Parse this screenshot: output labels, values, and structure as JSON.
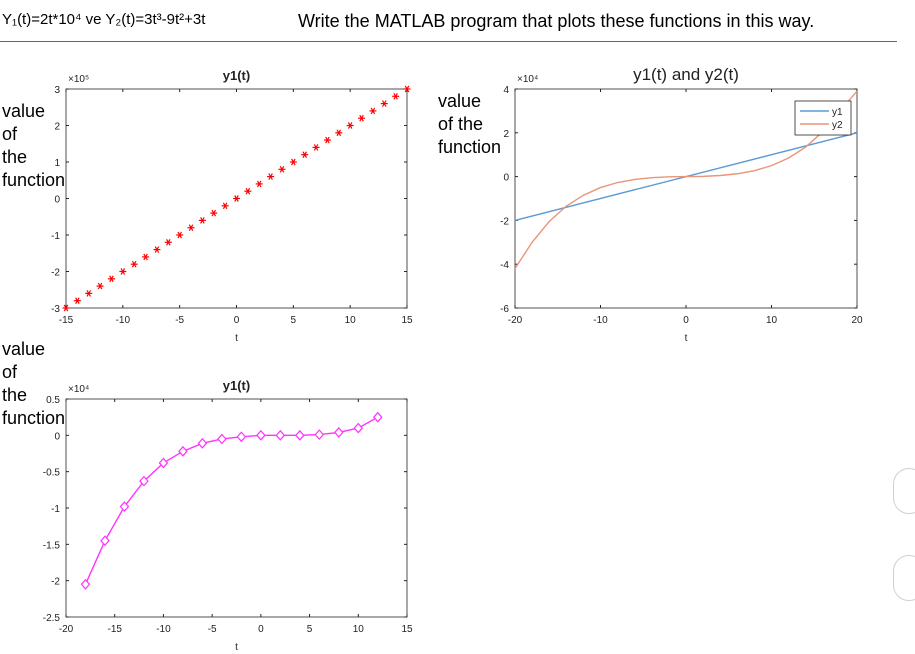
{
  "header": {
    "formula": "Y₁(t)=2t*10⁴  ve  Y₂(t)=3t³-9t²+3t",
    "task": "Write the MATLAB program that plots these functions in this way."
  },
  "overlay_labels": {
    "left_top": "value\nof\nthe\nfunction",
    "left_bottom": "value\nof\nthe\nfunction",
    "right_top": "value\nof the\nfunction"
  },
  "chart_data": [
    {
      "type": "scatter",
      "title": "y1(t)",
      "xlabel": "t",
      "ylabel": "",
      "exponent_label": "×10⁵",
      "xlim": [
        -15,
        15
      ],
      "ylim": [
        -3,
        3
      ],
      "xticks": [
        "-15",
        "-10",
        "-5",
        "0",
        "5",
        "10",
        "15"
      ],
      "yticks": [
        "-3",
        "-2",
        "-1",
        "0",
        "1",
        "2",
        "3"
      ],
      "color": "#ff0000",
      "marker": "asterisk",
      "series": [
        {
          "x": [
            -15,
            -14,
            -13,
            -12,
            -11,
            -10,
            -9,
            -8,
            -7,
            -6,
            -5,
            -4,
            -3,
            -2,
            -1,
            0,
            1,
            2,
            3,
            4,
            5,
            6,
            7,
            8,
            9,
            10,
            11,
            12,
            13,
            14,
            15
          ],
          "values": [
            -3,
            -2.8,
            -2.6,
            -2.4,
            -2.2,
            -2,
            -1.8,
            -1.6,
            -1.4,
            -1.2,
            -1,
            -0.8,
            -0.6,
            -0.4,
            -0.2,
            0,
            0.2,
            0.4,
            0.6,
            0.8,
            1,
            1.2,
            1.4,
            1.6,
            1.8,
            2,
            2.2,
            2.4,
            2.6,
            2.8,
            3
          ]
        }
      ]
    },
    {
      "type": "line",
      "title": "y1(t) and y2(t)",
      "xlabel": "t",
      "ylabel": "",
      "exponent_label": "×10⁴",
      "xlim": [
        -20,
        20
      ],
      "ylim": [
        -6,
        4
      ],
      "xticks": [
        "-20",
        "-10",
        "0",
        "10",
        "20"
      ],
      "yticks": [
        "-6",
        "-4",
        "-2",
        "0",
        "2",
        "4"
      ],
      "legend": {
        "position": "top-right",
        "entries": [
          "y1",
          "y2"
        ]
      },
      "series": [
        {
          "name": "y1",
          "color": "#5b9bd5",
          "x": [
            -20,
            20
          ],
          "values": [
            -2,
            2
          ]
        },
        {
          "name": "y2",
          "color": "#e8957a",
          "x": [
            -20,
            -18,
            -16,
            -14,
            -12,
            -10,
            -8,
            -6,
            -4,
            -2,
            0,
            2,
            4,
            6,
            8,
            10,
            12,
            14,
            16,
            18,
            20
          ],
          "values": [
            -4.2,
            -3.0,
            -2.05,
            -1.35,
            -0.85,
            -0.5,
            -0.27,
            -0.13,
            -0.05,
            -0.01,
            0,
            0.01,
            0.05,
            0.13,
            0.27,
            0.5,
            0.85,
            1.35,
            2.05,
            3.0,
            3.9
          ]
        }
      ]
    },
    {
      "type": "line",
      "title": "y1(t)",
      "xlabel": "t",
      "ylabel": "",
      "exponent_label": "×10⁴",
      "xlim": [
        -20,
        15
      ],
      "ylim": [
        -2.5,
        0.5
      ],
      "xticks": [
        "-20",
        "-15",
        "-10",
        "-5",
        "0",
        "5",
        "10",
        "15"
      ],
      "yticks": [
        "-2.5",
        "-2",
        "-1.5",
        "-1",
        "-0.5",
        "0",
        "0.5"
      ],
      "color": "#ff33ff",
      "marker": "diamond",
      "series": [
        {
          "x": [
            -18,
            -16,
            -14,
            -12,
            -10,
            -8,
            -6,
            -4,
            -2,
            0,
            2,
            4,
            6,
            8,
            10,
            12
          ],
          "values": [
            -2.05,
            -1.45,
            -0.98,
            -0.63,
            -0.38,
            -0.22,
            -0.11,
            -0.05,
            -0.02,
            0,
            0.0,
            0.0,
            0.01,
            0.04,
            0.1,
            0.25
          ]
        }
      ]
    }
  ]
}
